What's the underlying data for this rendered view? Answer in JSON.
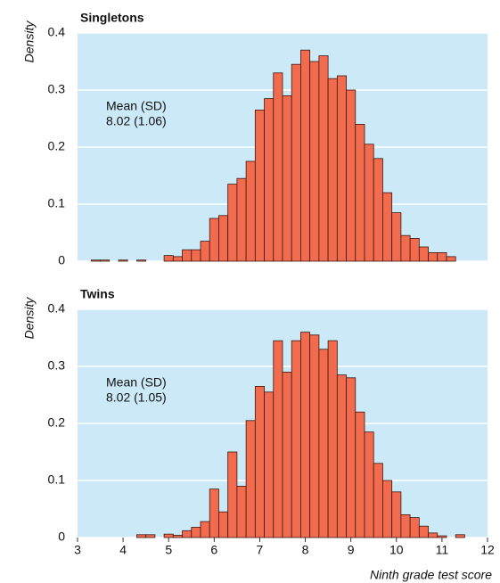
{
  "chart_data": [
    {
      "type": "histogram",
      "title": "Singletons",
      "y_label": "Density",
      "annotations": [
        "Mean (SD)",
        "8.02 (1.06)"
      ],
      "color": "#f26b4f",
      "bins": [
        3.3,
        3.5,
        3.7,
        3.9,
        4.1,
        4.3,
        4.5,
        4.7,
        4.9,
        5.1,
        5.3,
        5.5,
        5.7,
        5.9,
        6.1,
        6.3,
        6.5,
        6.7,
        6.9,
        7.1,
        7.3,
        7.5,
        7.7,
        7.9,
        8.1,
        8.3,
        8.5,
        8.7,
        8.9,
        9.1,
        9.3,
        9.5,
        9.7,
        9.9,
        10.1,
        10.3,
        10.5,
        10.7,
        10.9,
        11.1,
        11.3,
        11.5
      ],
      "counts": [
        0.002,
        0.002,
        0,
        0.002,
        0,
        0.002,
        0,
        0,
        0.01,
        0.008,
        0.02,
        0.02,
        0.035,
        0.075,
        0.08,
        0.135,
        0.145,
        0.175,
        0.265,
        0.285,
        0.33,
        0.29,
        0.345,
        0.37,
        0.35,
        0.36,
        0.32,
        0.325,
        0.3,
        0.24,
        0.205,
        0.18,
        0.12,
        0.085,
        0.045,
        0.04,
        0.025,
        0.015,
        0.015,
        0.008,
        0
      ],
      "xlim": [
        3,
        12
      ],
      "ylim": [
        0,
        0.4
      ],
      "yticks": [
        0,
        0.1,
        0.2,
        0.3,
        0.4
      ],
      "grid": true
    },
    {
      "type": "histogram",
      "title": "Twins",
      "y_label": "Density",
      "x_label": "Ninth grade test score",
      "annotations": [
        "Mean (SD)",
        "8.02 (1.05)"
      ],
      "color": "#f26b4f",
      "bins": [
        3.3,
        3.5,
        3.7,
        3.9,
        4.1,
        4.3,
        4.5,
        4.7,
        4.9,
        5.1,
        5.3,
        5.5,
        5.7,
        5.9,
        6.1,
        6.3,
        6.5,
        6.7,
        6.9,
        7.1,
        7.3,
        7.5,
        7.7,
        7.9,
        8.1,
        8.3,
        8.5,
        8.7,
        8.9,
        9.1,
        9.3,
        9.5,
        9.7,
        9.9,
        10.1,
        10.3,
        10.5,
        10.7,
        10.9,
        11.1,
        11.3,
        11.5
      ],
      "counts": [
        0,
        0,
        0,
        0,
        0,
        0.005,
        0.005,
        0,
        0.006,
        0.004,
        0.012,
        0.018,
        0.028,
        0.085,
        0.045,
        0.15,
        0.09,
        0.205,
        0.265,
        0.255,
        0.345,
        0.29,
        0.345,
        0.36,
        0.355,
        0.33,
        0.345,
        0.285,
        0.28,
        0.22,
        0.185,
        0.13,
        0.1,
        0.08,
        0.04,
        0.035,
        0.02,
        0.008,
        0.003,
        0,
        0.005
      ],
      "xlim": [
        3,
        12
      ],
      "xticks": [
        3,
        4,
        5,
        6,
        7,
        8,
        9,
        10,
        11,
        12
      ],
      "ylim": [
        0,
        0.4
      ],
      "yticks": [
        0,
        0.1,
        0.2,
        0.3,
        0.4
      ],
      "grid": true
    }
  ]
}
